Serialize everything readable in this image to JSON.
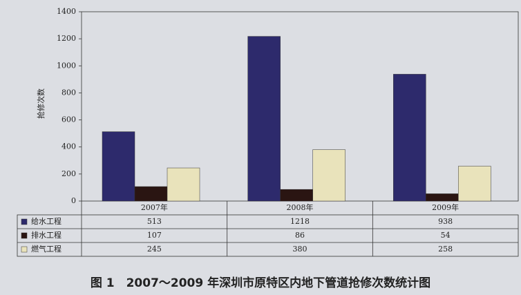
{
  "chart_data": {
    "type": "bar",
    "y_label": "抢修次数",
    "caption": "图 1　2007～2009 年深圳市原特区内地下管道抢修次数统计图",
    "categories": [
      "2007年",
      "2008年",
      "2009年"
    ],
    "series": [
      {
        "name": "给水工程",
        "color": "#2d2a6c",
        "values": [
          513,
          1218,
          938
        ]
      },
      {
        "name": "排水工程",
        "color": "#2a1512",
        "values": [
          107,
          86,
          54
        ]
      },
      {
        "name": "燃气工程",
        "color": "#e9e3bb",
        "values": [
          245,
          380,
          258
        ]
      }
    ],
    "ylim": [
      0,
      1400
    ],
    "yticks": [
      0,
      200,
      400,
      600,
      800,
      1000,
      1200,
      1400
    ],
    "grid": false
  }
}
